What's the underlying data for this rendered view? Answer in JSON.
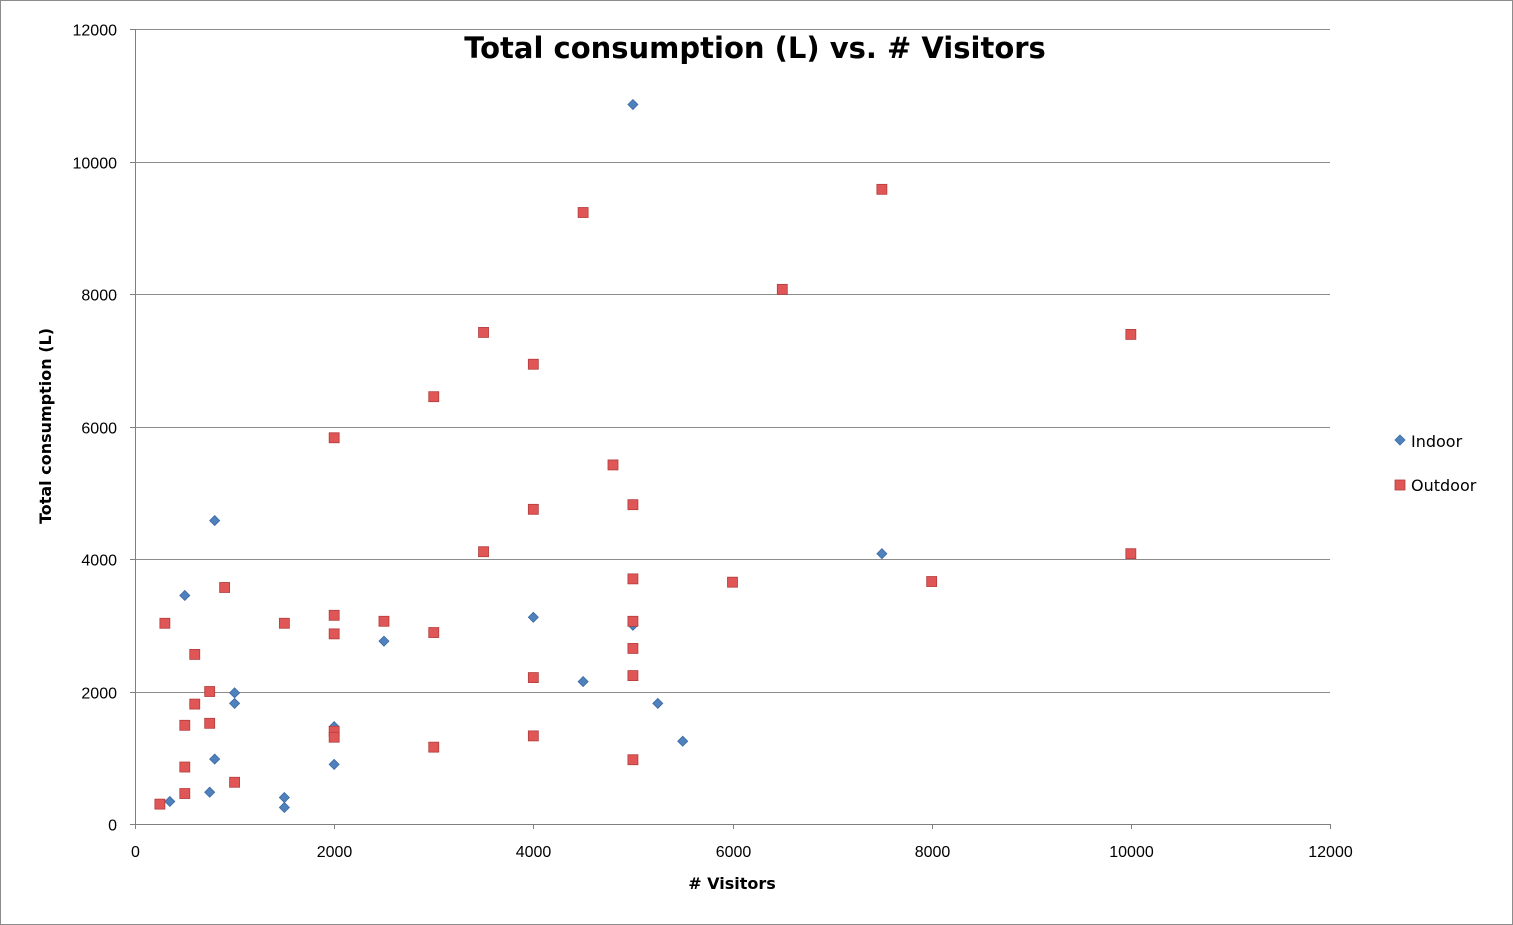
{
  "chart_data": {
    "type": "scatter",
    "title": "Total consumption (L) vs. # Visitors",
    "xlabel": "# Visitors",
    "ylabel": "Total consumption (L)",
    "xlim": [
      0,
      12000
    ],
    "ylim": [
      0,
      12000
    ],
    "x_ticks": [
      0,
      2000,
      4000,
      6000,
      8000,
      10000,
      12000
    ],
    "y_ticks": [
      0,
      2000,
      4000,
      6000,
      8000,
      10000,
      12000
    ],
    "grid": "horizontal",
    "legend_position": "right",
    "series": [
      {
        "name": "Indoor",
        "marker": "diamond",
        "color": "#4f81bd",
        "points": [
          [
            350,
            340
          ],
          [
            500,
            3450
          ],
          [
            750,
            480
          ],
          [
            800,
            980
          ],
          [
            800,
            4580
          ],
          [
            1000,
            1980
          ],
          [
            1000,
            1820
          ],
          [
            1500,
            400
          ],
          [
            1500,
            250
          ],
          [
            2000,
            1470
          ],
          [
            2000,
            900
          ],
          [
            2500,
            2760
          ],
          [
            4000,
            3120
          ],
          [
            4500,
            2150
          ],
          [
            5000,
            10860
          ],
          [
            5000,
            3000
          ],
          [
            5250,
            1820
          ],
          [
            5500,
            1250
          ],
          [
            7500,
            4080
          ]
        ]
      },
      {
        "name": "Outdoor",
        "marker": "square",
        "color": "#e05555",
        "points": [
          [
            250,
            300
          ],
          [
            300,
            3030
          ],
          [
            500,
            1490
          ],
          [
            500,
            860
          ],
          [
            500,
            460
          ],
          [
            600,
            2560
          ],
          [
            600,
            1810
          ],
          [
            750,
            2000
          ],
          [
            750,
            1520
          ],
          [
            900,
            3570
          ],
          [
            1000,
            630
          ],
          [
            1500,
            3030
          ],
          [
            2000,
            5830
          ],
          [
            2000,
            3150
          ],
          [
            2000,
            2870
          ],
          [
            2000,
            1400
          ],
          [
            2000,
            1310
          ],
          [
            2500,
            3060
          ],
          [
            3000,
            6450
          ],
          [
            3000,
            2890
          ],
          [
            3000,
            1160
          ],
          [
            3500,
            7420
          ],
          [
            3500,
            4110
          ],
          [
            4000,
            6940
          ],
          [
            4000,
            4750
          ],
          [
            4000,
            2210
          ],
          [
            4000,
            1330
          ],
          [
            4500,
            9230
          ],
          [
            4800,
            5420
          ],
          [
            5000,
            4820
          ],
          [
            5000,
            3700
          ],
          [
            5000,
            3060
          ],
          [
            5000,
            2650
          ],
          [
            5000,
            2240
          ],
          [
            5000,
            970
          ],
          [
            6000,
            3650
          ],
          [
            6500,
            8070
          ],
          [
            7500,
            9580
          ],
          [
            8000,
            3660
          ],
          [
            10000,
            7390
          ],
          [
            10000,
            4080
          ]
        ]
      }
    ]
  }
}
